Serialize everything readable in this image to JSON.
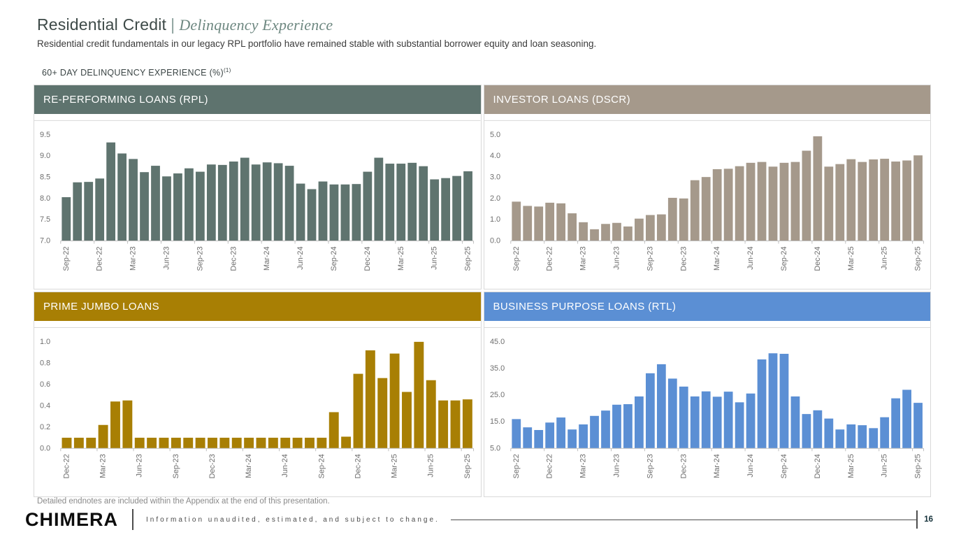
{
  "page": {
    "title_main": "Residential Credit",
    "title_sep": "|",
    "title_accent": "Delinquency Experience",
    "subtitle": "Residential credit fundamentals in our legacy RPL portfolio have remained stable with substantial borrower equity and loan seasoning.",
    "section_label": "60+ DAY DELINQUENCY EXPERIENCE (%)",
    "section_sup": "(1)"
  },
  "colors": {
    "rpl": "#5E736E",
    "dscr": "#A5998B",
    "prime_jumbo": "#A87F04",
    "rtl": "#5B8FD4",
    "axis": "#bfbfbf",
    "frame": "#d9d9d9",
    "tick_text": "#6e6e6e"
  },
  "chart_data": [
    {
      "key": "rpl",
      "type": "bar",
      "title": "RE-PERFORMING LOANS (RPL)",
      "header_color": "#5E736E",
      "bar_color": "#5F746F",
      "ylim": [
        7.0,
        9.5
      ],
      "yticks": [
        "9.5",
        "9.0",
        "8.5",
        "8.0",
        "7.5",
        "7.0"
      ],
      "label_every": 3,
      "categories": [
        "Sep-22",
        "Oct-22",
        "Nov-22",
        "Dec-22",
        "Jan-23",
        "Feb-23",
        "Mar-23",
        "Apr-23",
        "May-23",
        "Jun-23",
        "Jul-23",
        "Aug-23",
        "Sep-23",
        "Oct-23",
        "Nov-23",
        "Dec-23",
        "Jan-24",
        "Feb-24",
        "Mar-24",
        "Apr-24",
        "May-24",
        "Jun-24",
        "Jul-24",
        "Aug-24",
        "Sep-24",
        "Oct-24",
        "Nov-24",
        "Dec-24",
        "Jan-25",
        "Feb-25",
        "Mar-25",
        "Apr-25",
        "May-25",
        "Jun-25",
        "Jul-25",
        "Aug-25",
        "Sep-25"
      ],
      "values": [
        8.03,
        8.38,
        8.39,
        8.47,
        9.32,
        9.06,
        8.93,
        8.62,
        8.77,
        8.52,
        8.59,
        8.71,
        8.63,
        8.8,
        8.79,
        8.87,
        8.96,
        8.8,
        8.85,
        8.83,
        8.77,
        8.35,
        8.22,
        8.4,
        8.33,
        8.33,
        8.34,
        8.63,
        8.96,
        8.82,
        8.82,
        8.84,
        8.76,
        8.45,
        8.48,
        8.53,
        8.64
      ]
    },
    {
      "key": "dscr",
      "type": "bar",
      "title": "INVESTOR LOANS (DSCR)",
      "header_color": "#A5998B",
      "bar_color": "#A5998B",
      "ylim": [
        0.0,
        5.0
      ],
      "yticks": [
        "5.0",
        "4.0",
        "3.0",
        "2.0",
        "1.0",
        "0.0"
      ],
      "label_every": 3,
      "categories": [
        "Sep-22",
        "Oct-22",
        "Nov-22",
        "Dec-22",
        "Jan-23",
        "Feb-23",
        "Mar-23",
        "Apr-23",
        "May-23",
        "Jun-23",
        "Jul-23",
        "Aug-23",
        "Sep-23",
        "Oct-23",
        "Nov-23",
        "Dec-23",
        "Jan-24",
        "Feb-24",
        "Mar-24",
        "Apr-24",
        "May-24",
        "Jun-24",
        "Jul-24",
        "Aug-24",
        "Sep-24",
        "Oct-24",
        "Nov-24",
        "Dec-24",
        "Jan-25",
        "Feb-25",
        "Mar-25",
        "Apr-25",
        "May-25",
        "Jun-25",
        "Jul-25",
        "Aug-25",
        "Sep-25"
      ],
      "values": [
        1.85,
        1.65,
        1.62,
        1.8,
        1.77,
        1.3,
        0.88,
        0.55,
        0.8,
        0.85,
        0.68,
        1.05,
        1.22,
        1.25,
        2.03,
        2.0,
        2.86,
        3.01,
        3.38,
        3.4,
        3.52,
        3.68,
        3.72,
        3.5,
        3.68,
        3.72,
        4.25,
        4.93,
        3.5,
        3.62,
        3.85,
        3.72,
        3.84,
        3.87,
        3.74,
        3.79,
        4.03
      ]
    },
    {
      "key": "prime_jumbo",
      "type": "bar",
      "title": "PRIME JUMBO LOANS",
      "header_color": "#A87F04",
      "bar_color": "#A87F04",
      "ylim": [
        0.0,
        1.0
      ],
      "yticks": [
        "1.0",
        "0.8",
        "0.6",
        "0.4",
        "0.2",
        "0.0"
      ],
      "label_every": 3,
      "categories": [
        "Dec-22",
        "Jan-23",
        "Feb-23",
        "Mar-23",
        "Apr-23",
        "May-23",
        "Jun-23",
        "Jul-23",
        "Aug-23",
        "Sep-23",
        "Oct-23",
        "Nov-23",
        "Dec-23",
        "Jan-24",
        "Feb-24",
        "Mar-24",
        "Apr-24",
        "May-24",
        "Jun-24",
        "Jul-24",
        "Aug-24",
        "Sep-24",
        "Oct-24",
        "Nov-24",
        "Dec-24",
        "Jan-25",
        "Feb-25",
        "Mar-25",
        "Apr-25",
        "May-25",
        "Jun-25",
        "Jul-25",
        "Aug-25",
        "Sep-25"
      ],
      "values": [
        0.1,
        0.1,
        0.1,
        0.22,
        0.44,
        0.45,
        0.1,
        0.1,
        0.1,
        0.1,
        0.1,
        0.1,
        0.1,
        0.1,
        0.1,
        0.1,
        0.1,
        0.1,
        0.1,
        0.1,
        0.1,
        0.1,
        0.34,
        0.11,
        0.7,
        0.92,
        0.66,
        0.89,
        0.53,
        1.0,
        0.64,
        0.45,
        0.45,
        0.46
      ]
    },
    {
      "key": "rtl",
      "type": "bar",
      "title": "BUSINESS PURPOSE LOANS (RTL)",
      "header_color": "#5B8FD4",
      "bar_color": "#5B8FD4",
      "ylim": [
        5.0,
        45.0
      ],
      "yticks": [
        "45.0",
        "35.0",
        "25.0",
        "15.0",
        "5.0"
      ],
      "label_every": 3,
      "categories": [
        "Sep-22",
        "Oct-22",
        "Nov-22",
        "Dec-22",
        "Jan-23",
        "Feb-23",
        "Mar-23",
        "Apr-23",
        "May-23",
        "Jun-23",
        "Jul-23",
        "Aug-23",
        "Sep-23",
        "Oct-23",
        "Nov-23",
        "Dec-23",
        "Jan-24",
        "Feb-24",
        "Mar-24",
        "Apr-24",
        "May-24",
        "Jun-24",
        "Jul-24",
        "Aug-24",
        "Sep-24",
        "Oct-24",
        "Nov-24",
        "Dec-24",
        "Jan-25",
        "Feb-25",
        "Mar-25",
        "Apr-25",
        "May-25",
        "Jun-25",
        "Jul-25",
        "Aug-25",
        "Sep-25"
      ],
      "values": [
        16.0,
        12.9,
        11.9,
        14.7,
        16.6,
        12.1,
        14.0,
        17.2,
        19.2,
        21.4,
        21.6,
        24.5,
        33.2,
        36.6,
        31.2,
        28.2,
        24.5,
        26.4,
        24.4,
        26.3,
        22.3,
        25.6,
        38.4,
        40.7,
        40.5,
        24.5,
        17.9,
        19.3,
        16.2,
        12.1,
        14.0,
        13.7,
        12.6,
        16.7,
        23.8,
        27.0,
        22.1
      ]
    }
  ],
  "footer": {
    "endnote": "Detailed endnotes are included within the Appendix at the end of this presentation.",
    "logo": "CHIMERA",
    "disclaimer": "Information unaudited, estimated, and subject to change.",
    "page_number": "16"
  }
}
